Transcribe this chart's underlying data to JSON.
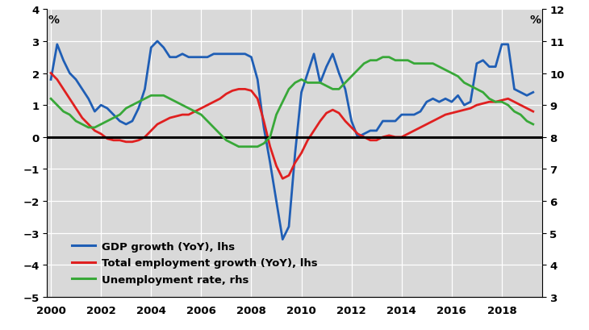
{
  "years_gdp": [
    2000.0,
    2000.25,
    2000.5,
    2000.75,
    2001.0,
    2001.25,
    2001.5,
    2001.75,
    2002.0,
    2002.25,
    2002.5,
    2002.75,
    2003.0,
    2003.25,
    2003.5,
    2003.75,
    2004.0,
    2004.25,
    2004.5,
    2004.75,
    2005.0,
    2005.25,
    2005.5,
    2005.75,
    2006.0,
    2006.25,
    2006.5,
    2006.75,
    2007.0,
    2007.25,
    2007.5,
    2007.75,
    2008.0,
    2008.25,
    2008.5,
    2008.75,
    2009.0,
    2009.25,
    2009.5,
    2009.75,
    2010.0,
    2010.25,
    2010.5,
    2010.75,
    2011.0,
    2011.25,
    2011.5,
    2011.75,
    2012.0,
    2012.25,
    2012.5,
    2012.75,
    2013.0,
    2013.25,
    2013.5,
    2013.75,
    2014.0,
    2014.25,
    2014.5,
    2014.75,
    2015.0,
    2015.25,
    2015.5,
    2015.75,
    2016.0,
    2016.25,
    2016.5,
    2016.75,
    2017.0,
    2017.25,
    2017.5,
    2017.75,
    2018.0,
    2018.25,
    2018.5,
    2018.75,
    2019.0,
    2019.25
  ],
  "gdp_growth": [
    1.8,
    2.9,
    2.4,
    2.0,
    1.8,
    1.5,
    1.2,
    0.8,
    1.0,
    0.9,
    0.7,
    0.5,
    0.4,
    0.5,
    0.9,
    1.5,
    2.8,
    3.0,
    2.8,
    2.5,
    2.5,
    2.6,
    2.5,
    2.5,
    2.5,
    2.5,
    2.6,
    2.6,
    2.6,
    2.6,
    2.6,
    2.6,
    2.5,
    1.8,
    0.3,
    -0.8,
    -2.0,
    -3.2,
    -2.8,
    -0.5,
    1.4,
    2.0,
    2.6,
    1.7,
    2.2,
    2.6,
    2.0,
    1.5,
    0.5,
    0.0,
    0.1,
    0.2,
    0.2,
    0.5,
    0.5,
    0.5,
    0.7,
    0.7,
    0.7,
    0.8,
    1.1,
    1.2,
    1.1,
    1.2,
    1.1,
    1.3,
    1.0,
    1.1,
    2.3,
    2.4,
    2.2,
    2.2,
    2.9,
    2.9,
    1.5,
    1.4,
    1.3,
    1.4
  ],
  "years_emp": [
    2000.0,
    2000.25,
    2000.5,
    2000.75,
    2001.0,
    2001.25,
    2001.5,
    2001.75,
    2002.0,
    2002.25,
    2002.5,
    2002.75,
    2003.0,
    2003.25,
    2003.5,
    2003.75,
    2004.0,
    2004.25,
    2004.5,
    2004.75,
    2005.0,
    2005.25,
    2005.5,
    2005.75,
    2006.0,
    2006.25,
    2006.5,
    2006.75,
    2007.0,
    2007.25,
    2007.5,
    2007.75,
    2008.0,
    2008.25,
    2008.5,
    2008.75,
    2009.0,
    2009.25,
    2009.5,
    2009.75,
    2010.0,
    2010.25,
    2010.5,
    2010.75,
    2011.0,
    2011.25,
    2011.5,
    2011.75,
    2012.0,
    2012.25,
    2012.5,
    2012.75,
    2013.0,
    2013.25,
    2013.5,
    2013.75,
    2014.0,
    2014.25,
    2014.5,
    2014.75,
    2015.0,
    2015.25,
    2015.5,
    2015.75,
    2016.0,
    2016.25,
    2016.5,
    2016.75,
    2017.0,
    2017.25,
    2017.5,
    2017.75,
    2018.0,
    2018.25,
    2018.5,
    2018.75,
    2019.0,
    2019.25
  ],
  "emp_growth": [
    2.0,
    1.8,
    1.5,
    1.2,
    0.9,
    0.6,
    0.4,
    0.2,
    0.1,
    -0.05,
    -0.1,
    -0.1,
    -0.15,
    -0.15,
    -0.1,
    0.0,
    0.2,
    0.4,
    0.5,
    0.6,
    0.65,
    0.7,
    0.7,
    0.8,
    0.9,
    1.0,
    1.1,
    1.2,
    1.35,
    1.45,
    1.5,
    1.5,
    1.45,
    1.2,
    0.5,
    -0.3,
    -0.9,
    -1.3,
    -1.2,
    -0.8,
    -0.5,
    -0.1,
    0.2,
    0.5,
    0.75,
    0.85,
    0.75,
    0.5,
    0.3,
    0.1,
    0.0,
    -0.1,
    -0.1,
    0.0,
    0.05,
    0.0,
    0.0,
    0.1,
    0.2,
    0.3,
    0.4,
    0.5,
    0.6,
    0.7,
    0.75,
    0.8,
    0.85,
    0.9,
    1.0,
    1.05,
    1.1,
    1.1,
    1.15,
    1.2,
    1.1,
    1.0,
    0.9,
    0.8
  ],
  "years_unemp": [
    2000.0,
    2000.25,
    2000.5,
    2000.75,
    2001.0,
    2001.25,
    2001.5,
    2001.75,
    2002.0,
    2002.25,
    2002.5,
    2002.75,
    2003.0,
    2003.25,
    2003.5,
    2003.75,
    2004.0,
    2004.25,
    2004.5,
    2004.75,
    2005.0,
    2005.25,
    2005.5,
    2005.75,
    2006.0,
    2006.25,
    2006.5,
    2006.75,
    2007.0,
    2007.25,
    2007.5,
    2007.75,
    2008.0,
    2008.25,
    2008.5,
    2008.75,
    2009.0,
    2009.25,
    2009.5,
    2009.75,
    2010.0,
    2010.25,
    2010.5,
    2010.75,
    2011.0,
    2011.25,
    2011.5,
    2011.75,
    2012.0,
    2012.25,
    2012.5,
    2012.75,
    2013.0,
    2013.25,
    2013.5,
    2013.75,
    2014.0,
    2014.25,
    2014.5,
    2014.75,
    2015.0,
    2015.25,
    2015.5,
    2015.75,
    2016.0,
    2016.25,
    2016.5,
    2016.75,
    2017.0,
    2017.25,
    2017.5,
    2017.75,
    2018.0,
    2018.25,
    2018.5,
    2018.75,
    2019.0,
    2019.25
  ],
  "unemp_rate": [
    9.2,
    9.0,
    8.8,
    8.7,
    8.5,
    8.4,
    8.3,
    8.3,
    8.4,
    8.5,
    8.6,
    8.7,
    8.9,
    9.0,
    9.1,
    9.2,
    9.3,
    9.3,
    9.3,
    9.2,
    9.1,
    9.0,
    8.9,
    8.8,
    8.7,
    8.5,
    8.3,
    8.1,
    7.9,
    7.8,
    7.7,
    7.7,
    7.7,
    7.7,
    7.8,
    8.0,
    8.7,
    9.1,
    9.5,
    9.7,
    9.8,
    9.7,
    9.7,
    9.7,
    9.6,
    9.5,
    9.5,
    9.7,
    9.9,
    10.1,
    10.3,
    10.4,
    10.4,
    10.5,
    10.5,
    10.4,
    10.4,
    10.4,
    10.3,
    10.3,
    10.3,
    10.3,
    10.2,
    10.1,
    10.0,
    9.9,
    9.7,
    9.6,
    9.5,
    9.4,
    9.2,
    9.1,
    9.1,
    9.0,
    8.8,
    8.7,
    8.5,
    8.4
  ],
  "gdp_color": "#1f5eb5",
  "emp_color": "#e02020",
  "unemp_color": "#38a838",
  "bg_color": "#d9d9d9",
  "lhs_ylim": [
    -5,
    4
  ],
  "rhs_ylim": [
    3,
    12
  ],
  "lhs_yticks": [
    -5,
    -4,
    -3,
    -2,
    -1,
    0,
    1,
    2,
    3,
    4
  ],
  "rhs_yticks": [
    3,
    4,
    5,
    6,
    7,
    8,
    9,
    10,
    11,
    12
  ],
  "xticks": [
    2000,
    2002,
    2004,
    2006,
    2008,
    2010,
    2012,
    2014,
    2016,
    2018
  ],
  "legend_labels": [
    "GDP growth (YoY), lhs",
    "Total employment growth (YoY), lhs",
    "Unemployment rate, rhs"
  ],
  "lhs_label": "%",
  "rhs_label": "%"
}
